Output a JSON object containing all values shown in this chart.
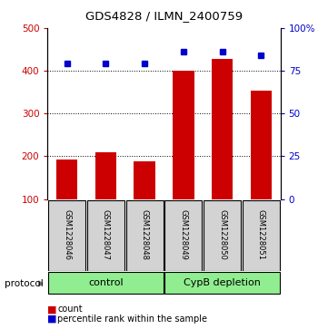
{
  "title": "GDS4828 / ILMN_2400759",
  "samples": [
    "GSM1228046",
    "GSM1228047",
    "GSM1228048",
    "GSM1228049",
    "GSM1228050",
    "GSM1228051"
  ],
  "counts": [
    193,
    210,
    188,
    400,
    428,
    354
  ],
  "percentile_ranks": [
    79,
    79,
    79,
    86,
    86,
    84
  ],
  "bar_color": "#CC0000",
  "dot_color": "#0000CC",
  "ylim_left": [
    100,
    500
  ],
  "ylim_right": [
    0,
    100
  ],
  "yticks_left": [
    100,
    200,
    300,
    400,
    500
  ],
  "ytick_labels_left": [
    "100",
    "200",
    "300",
    "400",
    "500"
  ],
  "yticks_right": [
    0,
    25,
    50,
    75,
    100
  ],
  "ytick_labels_right": [
    "0",
    "25",
    "50",
    "75",
    "100%"
  ],
  "grid_lines": [
    200,
    300,
    400
  ],
  "legend_count_label": "count",
  "legend_pct_label": "percentile rank within the sample",
  "protocol_label": "protocol",
  "group_row_color": "#90EE90",
  "sample_box_color": "#D3D3D3",
  "control_label": "control",
  "cypb_label": "CypB depletion",
  "background_color": "#FFFFFF"
}
